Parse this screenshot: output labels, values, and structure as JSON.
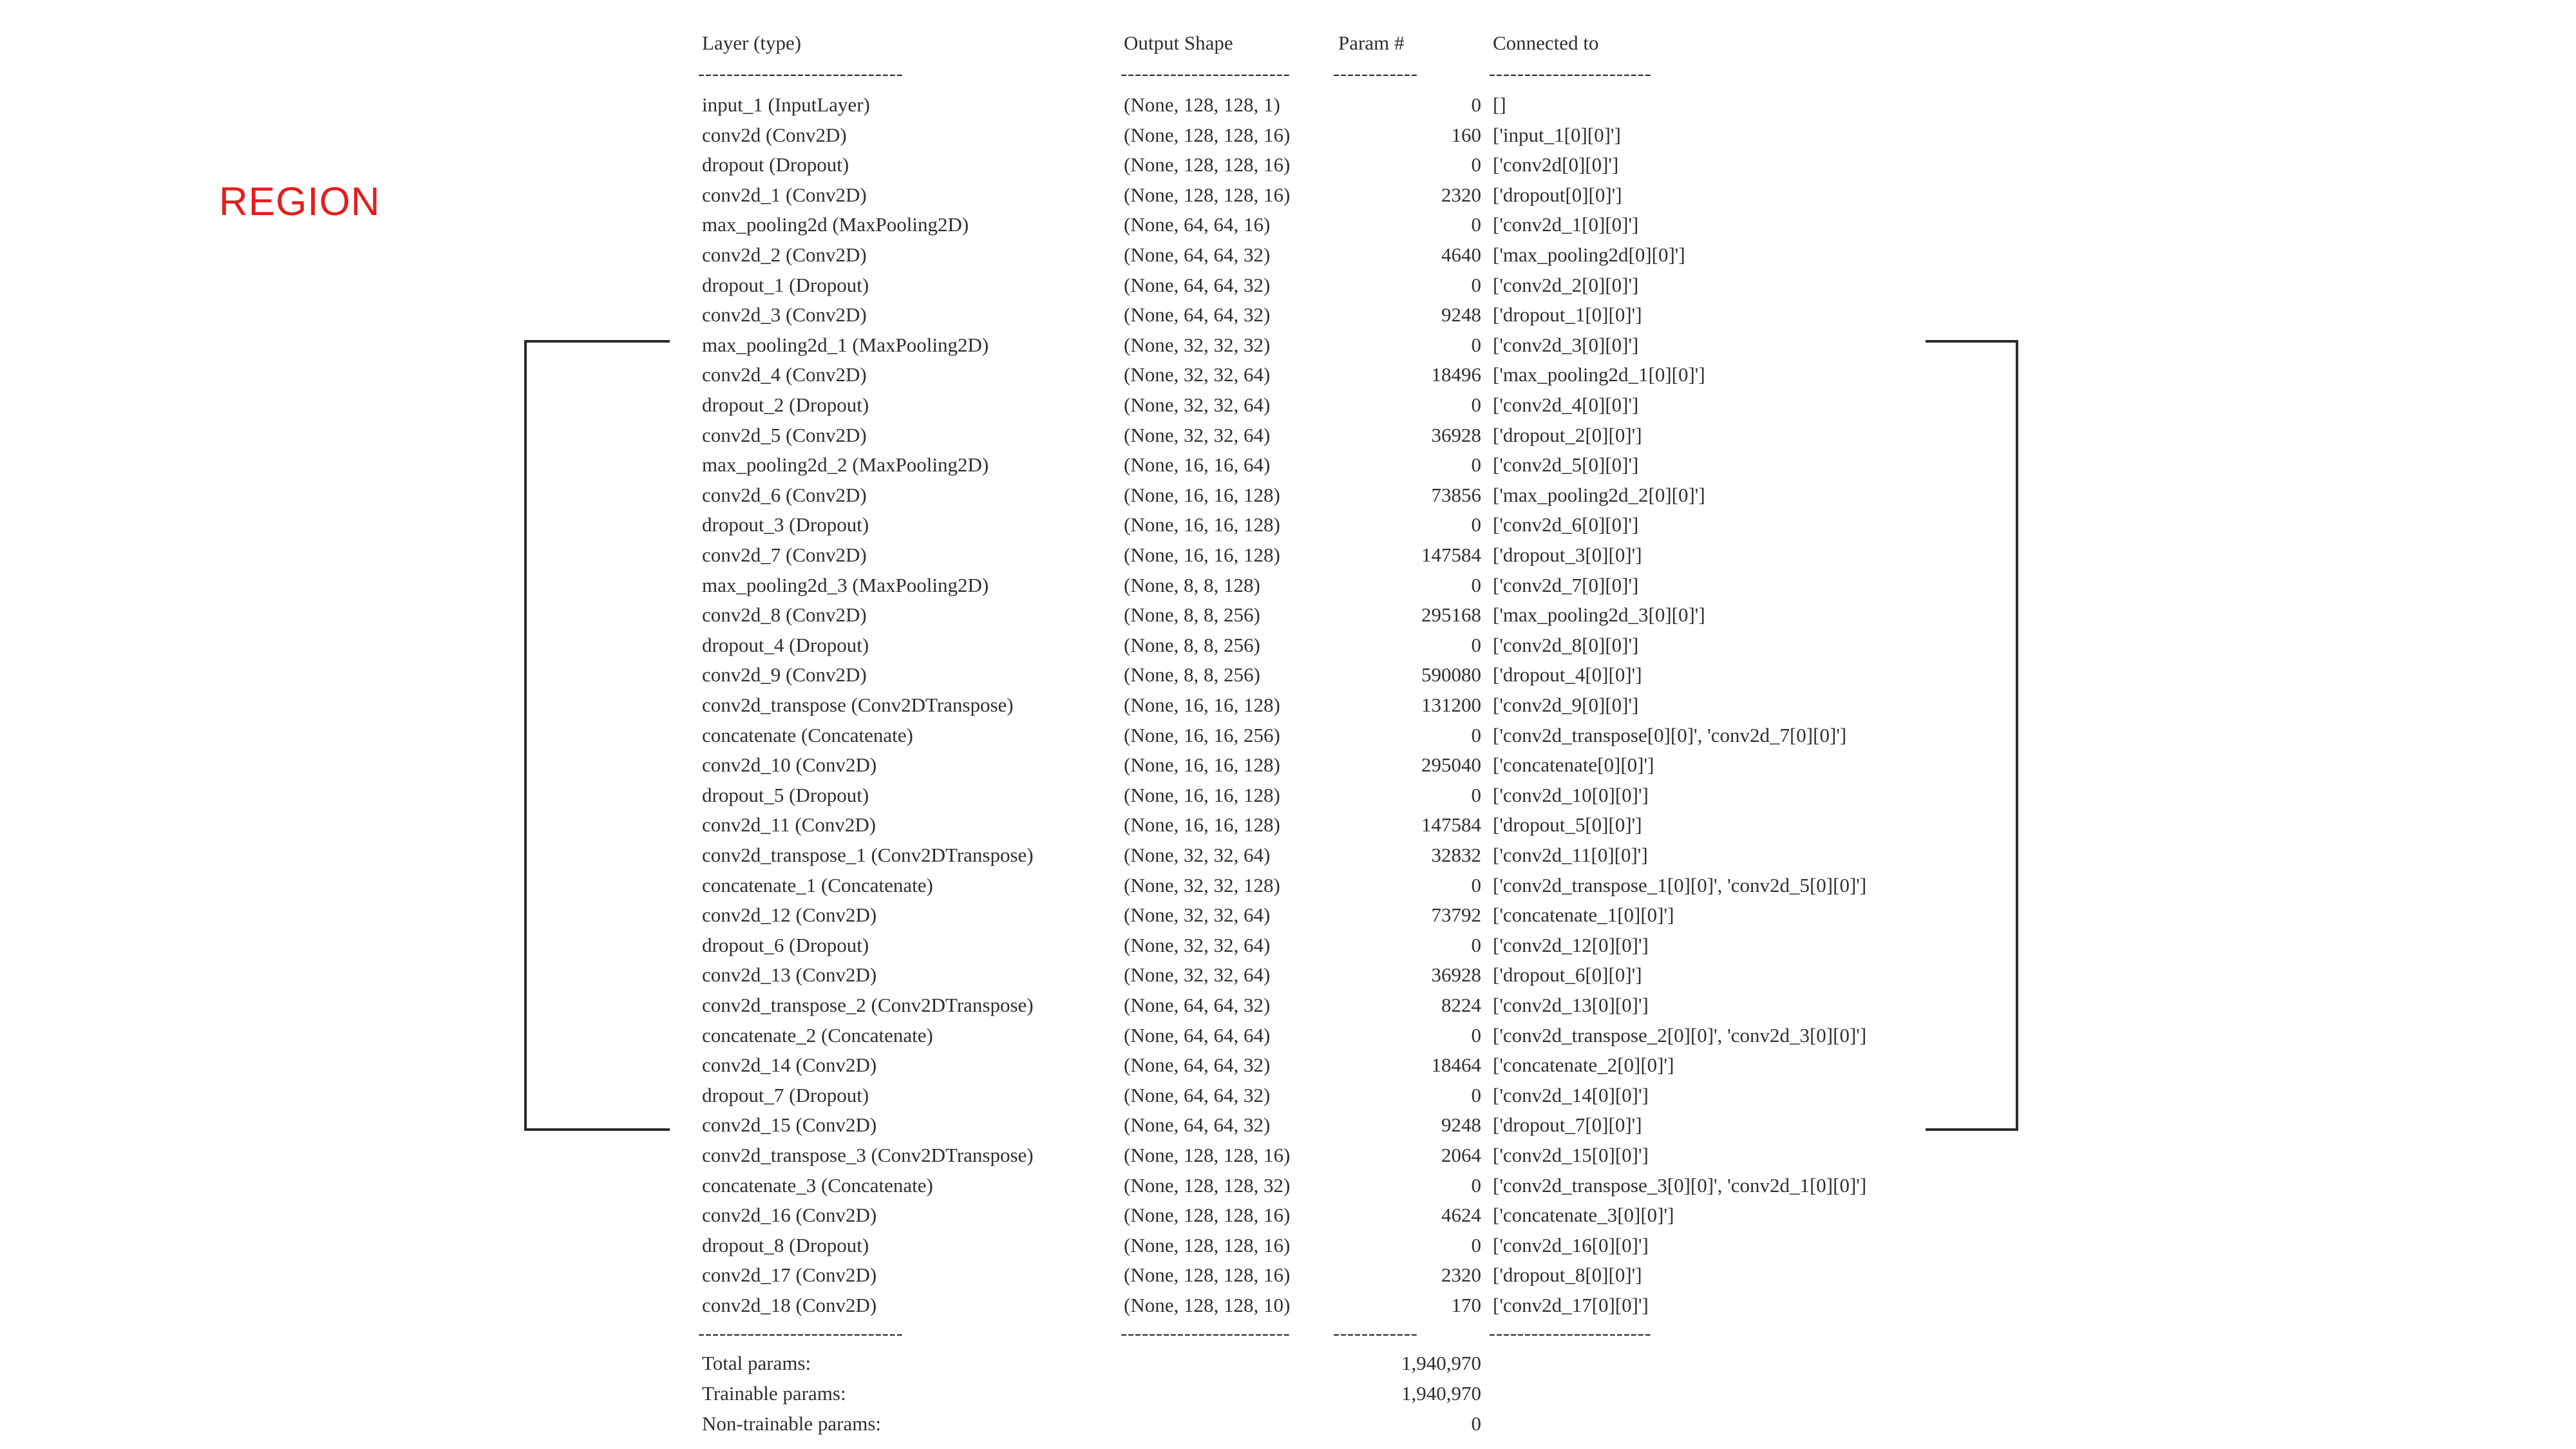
{
  "region_label": "REGION",
  "headers": {
    "layer": "Layer (type)",
    "shape": "Output Shape",
    "param": "Param #",
    "connected": "Connected to"
  },
  "dividers": {
    "layer": "-----------------------------",
    "shape": "------------------------",
    "param": "------------",
    "connected": "-----------------------"
  },
  "rows": [
    {
      "layer": "input_1 (InputLayer)",
      "shape": "(None, 128, 128, 1)",
      "param": "0",
      "connected": "[]"
    },
    {
      "layer": "conv2d (Conv2D)",
      "shape": "(None, 128, 128, 16)",
      "param": "160",
      "connected": "['input_1[0][0]']"
    },
    {
      "layer": "dropout (Dropout)",
      "shape": "(None, 128, 128, 16)",
      "param": "0",
      "connected": "['conv2d[0][0]']"
    },
    {
      "layer": "conv2d_1 (Conv2D)",
      "shape": "(None, 128, 128, 16)",
      "param": "2320",
      "connected": "['dropout[0][0]']"
    },
    {
      "layer": "max_pooling2d (MaxPooling2D)",
      "shape": "(None, 64, 64, 16)",
      "param": "0",
      "connected": "['conv2d_1[0][0]']"
    },
    {
      "layer": "conv2d_2 (Conv2D)",
      "shape": "(None, 64, 64, 32)",
      "param": "4640",
      "connected": "['max_pooling2d[0][0]']"
    },
    {
      "layer": "dropout_1 (Dropout)",
      "shape": "(None, 64, 64, 32)",
      "param": "0",
      "connected": "['conv2d_2[0][0]']"
    },
    {
      "layer": "conv2d_3 (Conv2D)",
      "shape": "(None, 64, 64, 32)",
      "param": "9248",
      "connected": "['dropout_1[0][0]']"
    },
    {
      "layer": "max_pooling2d_1 (MaxPooling2D)",
      "shape": "(None, 32, 32, 32)",
      "param": "0",
      "connected": "['conv2d_3[0][0]']"
    },
    {
      "layer": "conv2d_4 (Conv2D)",
      "shape": "(None, 32, 32, 64)",
      "param": "18496",
      "connected": "['max_pooling2d_1[0][0]']"
    },
    {
      "layer": "dropout_2 (Dropout)",
      "shape": "(None, 32, 32, 64)",
      "param": "0",
      "connected": "['conv2d_4[0][0]']"
    },
    {
      "layer": "conv2d_5 (Conv2D)",
      "shape": "(None, 32, 32, 64)",
      "param": "36928",
      "connected": "['dropout_2[0][0]']"
    },
    {
      "layer": "max_pooling2d_2 (MaxPooling2D)",
      "shape": "(None, 16, 16, 64)",
      "param": "0",
      "connected": "['conv2d_5[0][0]']"
    },
    {
      "layer": "conv2d_6 (Conv2D)",
      "shape": "(None, 16, 16, 128)",
      "param": "73856",
      "connected": "['max_pooling2d_2[0][0]']"
    },
    {
      "layer": "dropout_3 (Dropout)",
      "shape": "(None, 16, 16, 128)",
      "param": "0",
      "connected": "['conv2d_6[0][0]']"
    },
    {
      "layer": "conv2d_7 (Conv2D)",
      "shape": "(None, 16, 16, 128)",
      "param": "147584",
      "connected": "['dropout_3[0][0]']"
    },
    {
      "layer": "max_pooling2d_3 (MaxPooling2D)",
      "shape": "(None, 8, 8, 128)",
      "param": "0",
      "connected": "['conv2d_7[0][0]']"
    },
    {
      "layer": "conv2d_8 (Conv2D)",
      "shape": "(None, 8, 8, 256)",
      "param": "295168",
      "connected": "['max_pooling2d_3[0][0]']"
    },
    {
      "layer": "dropout_4 (Dropout)",
      "shape": "(None, 8, 8, 256)",
      "param": "0",
      "connected": "['conv2d_8[0][0]']"
    },
    {
      "layer": "conv2d_9 (Conv2D)",
      "shape": "(None, 8, 8, 256)",
      "param": "590080",
      "connected": "['dropout_4[0][0]']"
    },
    {
      "layer": "conv2d_transpose (Conv2DTranspose)",
      "shape": "(None, 16, 16, 128)",
      "param": "131200",
      "connected": "['conv2d_9[0][0]']"
    },
    {
      "layer": "concatenate (Concatenate)",
      "shape": "(None, 16, 16, 256)",
      "param": "0",
      "connected": "['conv2d_transpose[0][0]', 'conv2d_7[0][0]']"
    },
    {
      "layer": "conv2d_10 (Conv2D)",
      "shape": "(None, 16, 16, 128)",
      "param": "295040",
      "connected": "['concatenate[0][0]']"
    },
    {
      "layer": "dropout_5 (Dropout)",
      "shape": "(None, 16, 16, 128)",
      "param": "0",
      "connected": "['conv2d_10[0][0]']"
    },
    {
      "layer": "conv2d_11 (Conv2D)",
      "shape": "(None, 16, 16, 128)",
      "param": "147584",
      "connected": "['dropout_5[0][0]']"
    },
    {
      "layer": "conv2d_transpose_1 (Conv2DTranspose)",
      "shape": "(None, 32, 32, 64)",
      "param": "32832",
      "connected": "['conv2d_11[0][0]']"
    },
    {
      "layer": "concatenate_1 (Concatenate)",
      "shape": "(None, 32, 32, 128)",
      "param": "0",
      "connected": "['conv2d_transpose_1[0][0]', 'conv2d_5[0][0]']"
    },
    {
      "layer": "conv2d_12 (Conv2D)",
      "shape": "(None, 32, 32, 64)",
      "param": "73792",
      "connected": "['concatenate_1[0][0]']"
    },
    {
      "layer": "dropout_6 (Dropout)",
      "shape": "(None, 32, 32, 64)",
      "param": "0",
      "connected": "['conv2d_12[0][0]']"
    },
    {
      "layer": "conv2d_13 (Conv2D)",
      "shape": "(None, 32, 32, 64)",
      "param": "36928",
      "connected": "['dropout_6[0][0]']"
    },
    {
      "layer": "conv2d_transpose_2 (Conv2DTranspose)",
      "shape": "(None, 64, 64, 32)",
      "param": "8224",
      "connected": "['conv2d_13[0][0]']"
    },
    {
      "layer": "concatenate_2 (Concatenate)",
      "shape": "(None, 64, 64, 64)",
      "param": "0",
      "connected": "['conv2d_transpose_2[0][0]', 'conv2d_3[0][0]']"
    },
    {
      "layer": "conv2d_14 (Conv2D)",
      "shape": "(None, 64, 64, 32)",
      "param": "18464",
      "connected": "['concatenate_2[0][0]']"
    },
    {
      "layer": "dropout_7 (Dropout)",
      "shape": "(None, 64, 64, 32)",
      "param": "0",
      "connected": "['conv2d_14[0][0]']"
    },
    {
      "layer": "conv2d_15 (Conv2D)",
      "shape": "(None, 64, 64, 32)",
      "param": "9248",
      "connected": "['dropout_7[0][0]']"
    },
    {
      "layer": "conv2d_transpose_3 (Conv2DTranspose)",
      "shape": "(None, 128, 128, 16)",
      "param": "2064",
      "connected": "['conv2d_15[0][0]']"
    },
    {
      "layer": "concatenate_3 (Concatenate)",
      "shape": "(None, 128, 128, 32)",
      "param": "0",
      "connected": "['conv2d_transpose_3[0][0]', 'conv2d_1[0][0]']"
    },
    {
      "layer": "conv2d_16 (Conv2D)",
      "shape": "(None, 128, 128, 16)",
      "param": "4624",
      "connected": "['concatenate_3[0][0]']"
    },
    {
      "layer": "dropout_8 (Dropout)",
      "shape": "(None, 128, 128, 16)",
      "param": "0",
      "connected": "['conv2d_16[0][0]']"
    },
    {
      "layer": "conv2d_17 (Conv2D)",
      "shape": "(None, 128, 128, 16)",
      "param": "2320",
      "connected": "['dropout_8[0][0]']"
    },
    {
      "layer": "conv2d_18 (Conv2D)",
      "shape": "(None, 128, 128, 10)",
      "param": "170",
      "connected": "['conv2d_17[0][0]']"
    }
  ],
  "totals": [
    {
      "label": "Total params:",
      "value": "1,940,970"
    },
    {
      "label": "Trainable params:",
      "value": "1,940,970"
    },
    {
      "label": "Non-trainable params:",
      "value": "0"
    }
  ]
}
